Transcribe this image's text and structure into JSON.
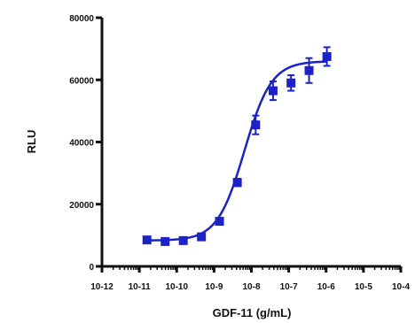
{
  "chart_data": {
    "type": "scatter",
    "title": "",
    "xlabel": "GDF-11 (g/mL)",
    "ylabel": "RLU",
    "x_scale": "log",
    "xlim": [
      1e-12,
      0.0001
    ],
    "ylim": [
      0,
      80000
    ],
    "x_ticks": [
      {
        "value": 1e-12,
        "label": "10-12"
      },
      {
        "value": 1e-11,
        "label": "10-11"
      },
      {
        "value": 1e-10,
        "label": "10-10"
      },
      {
        "value": 1e-09,
        "label": "10-9"
      },
      {
        "value": 1e-08,
        "label": "10-8"
      },
      {
        "value": 1e-07,
        "label": "10-7"
      },
      {
        "value": 1e-06,
        "label": "10-6"
      },
      {
        "value": 1e-05,
        "label": "10-5"
      },
      {
        "value": 0.0001,
        "label": "10-4"
      }
    ],
    "y_ticks": [
      {
        "value": 0,
        "label": "0"
      },
      {
        "value": 20000,
        "label": "20000"
      },
      {
        "value": 40000,
        "label": "40000"
      },
      {
        "value": 60000,
        "label": "60000"
      },
      {
        "value": 80000,
        "label": "80000"
      }
    ],
    "grid": false,
    "legend": "none",
    "color": "#1c22c8",
    "series": [
      {
        "x": [
          1.6e-11,
          4.9e-11,
          1.5e-10,
          4.6e-10,
          1.4e-09,
          4.2e-09,
          1.3e-08,
          3.8e-08,
          1.15e-07,
          3.5e-07,
          1.05e-06
        ],
        "y": [
          8500,
          8000,
          8300,
          9500,
          14500,
          27000,
          45500,
          56500,
          59000,
          63000,
          67500
        ],
        "error": [
          900,
          700,
          800,
          900,
          1000,
          1200,
          3000,
          3000,
          2500,
          4000,
          3000
        ]
      }
    ],
    "fit": {
      "model": "4PL",
      "bottom": 8300,
      "top": 66000,
      "ec50": 6.5e-09,
      "hill": 1.2
    }
  }
}
